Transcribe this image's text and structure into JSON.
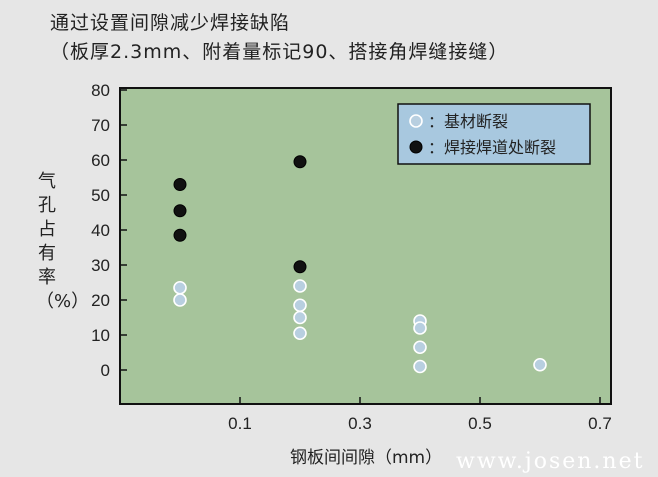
{
  "chart_data": {
    "type": "scatter",
    "title": "通过设置间隙减少焊接缺陷",
    "subtitle": "（板厚2.3mm、附着量标记90、搭接角焊缝接缝）",
    "xlabel": "钢板间间隙（mm）",
    "ylabel": "气孔占有率（%）",
    "xlim": [
      0,
      0.7
    ],
    "ylim": [
      -10,
      80
    ],
    "xticks": [
      "0.1",
      "0.3",
      "0.5",
      "0.7"
    ],
    "xtick_values": [
      0.1,
      0.3,
      0.5,
      0.7
    ],
    "yticks": [
      "80",
      "70",
      "60",
      "50",
      "40",
      "30",
      "20",
      "10",
      "0"
    ],
    "ytick_values": [
      80,
      70,
      60,
      50,
      40,
      30,
      20,
      10,
      0
    ],
    "grid": false,
    "legend_position": "top-right",
    "series": [
      {
        "name": "基材断裂",
        "marker": "open-circle",
        "color": "#b8cfe0",
        "points": [
          [
            0.0,
            23.5
          ],
          [
            0.0,
            20
          ],
          [
            0.2,
            24
          ],
          [
            0.2,
            18.5
          ],
          [
            0.2,
            15
          ],
          [
            0.2,
            10.5
          ],
          [
            0.4,
            14
          ],
          [
            0.4,
            12
          ],
          [
            0.4,
            6.5
          ],
          [
            0.4,
            1
          ],
          [
            0.6,
            1.5
          ]
        ]
      },
      {
        "name": "焊接焊道处断裂",
        "marker": "filled-circle",
        "color": "#111111",
        "points": [
          [
            0.0,
            53
          ],
          [
            0.0,
            45.5
          ],
          [
            0.0,
            38.5
          ],
          [
            0.2,
            59.5
          ],
          [
            0.2,
            29.5
          ]
        ]
      }
    ],
    "legend_labels": [
      "：基材断裂",
      "：焊接焊道处断裂"
    ]
  },
  "colors": {
    "plot_bg": "#a6c49b",
    "page_bg": "#e6e6e6",
    "legend_bg": "#a8c8df"
  },
  "watermark": "www.josen.net"
}
